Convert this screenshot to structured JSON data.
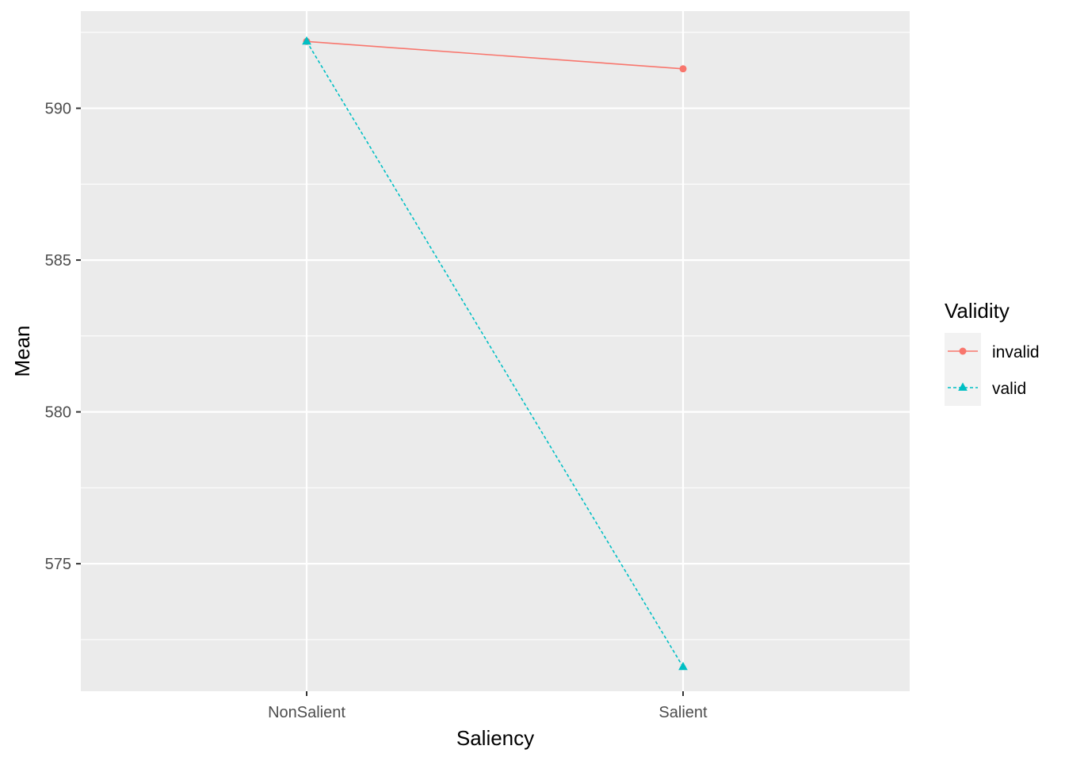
{
  "chart_data": {
    "type": "line",
    "categories": [
      "NonSalient",
      "Salient"
    ],
    "series": [
      {
        "name": "invalid",
        "values": [
          592.2,
          591.3
        ],
        "color": "#F8766D",
        "line_style": "solid",
        "marker": "circle"
      },
      {
        "name": "valid",
        "values": [
          592.2,
          571.6
        ],
        "color": "#00BFC4",
        "line_style": "dashed",
        "marker": "triangle"
      }
    ],
    "xlabel": "Saliency",
    "ylabel": "Mean",
    "ylim": [
      570.8,
      593.2
    ],
    "yticks": [
      575,
      580,
      585,
      590
    ],
    "ytick_labels": [
      "575",
      "580",
      "585",
      "590"
    ],
    "legend": {
      "title": "Validity",
      "position": "right"
    },
    "grid": true,
    "panel_background": "#EBEBEB",
    "grid_color": "#FFFFFF"
  }
}
